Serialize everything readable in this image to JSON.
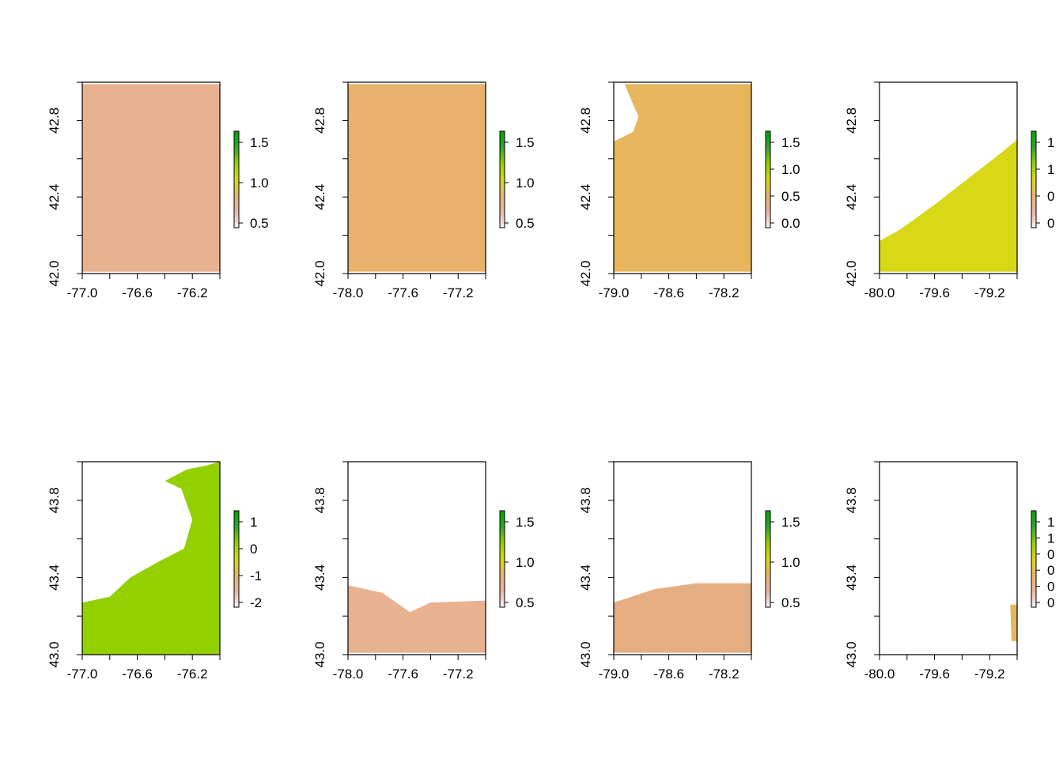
{
  "colors": {
    "background": "#ffffff",
    "frame": "#000000",
    "ramp": [
      "#f2f2f2",
      "#eab4a4",
      "#e8b36c",
      "#d8d817",
      "#93d000",
      "#31a531",
      "#00a600"
    ]
  },
  "panels": [
    {
      "row": 1,
      "col": 1,
      "x_ticks": [
        "-77.0",
        "-76.6",
        "-76.2"
      ],
      "y_ticks": [
        "42.0",
        "42.4",
        "42.8"
      ],
      "legend_ticks": [
        "0.5",
        "1.0",
        "1.5"
      ],
      "coverage": "full",
      "base_color": "#e8b190"
    },
    {
      "row": 1,
      "col": 2,
      "x_ticks": [
        "-78.0",
        "-77.6",
        "-77.2"
      ],
      "y_ticks": [
        "42.0",
        "42.4",
        "42.8"
      ],
      "legend_ticks": [
        "0.5",
        "1.0",
        "1.5"
      ],
      "coverage": "full",
      "base_color": "#e8b16c"
    },
    {
      "row": 1,
      "col": 3,
      "x_ticks": [
        "-79.0",
        "-78.6",
        "-78.2"
      ],
      "y_ticks": [
        "42.0",
        "42.4",
        "42.8"
      ],
      "legend_ticks": [
        "0.0",
        "0.5",
        "1.0",
        "1.5"
      ],
      "coverage": "full_minus_lake_corner",
      "base_color": "#e6b55c"
    },
    {
      "row": 1,
      "col": 4,
      "x_ticks": [
        "-80.0",
        "-79.6",
        "-79.2"
      ],
      "y_ticks": [
        "42.0",
        "42.4",
        "42.8"
      ],
      "legend_ticks": [
        "0",
        "0",
        "1",
        "1"
      ],
      "coverage": "lower_right_wedge",
      "base_color": "#d8d817"
    },
    {
      "row": 2,
      "col": 1,
      "x_ticks": [
        "-77.0",
        "-76.6",
        "-76.2"
      ],
      "y_ticks": [
        "43.0",
        "43.4",
        "43.8"
      ],
      "legend_ticks": [
        "-2",
        "-1",
        "0",
        "1"
      ],
      "coverage": "lower_right_land",
      "base_color": "#93d000"
    },
    {
      "row": 2,
      "col": 2,
      "x_ticks": [
        "-78.0",
        "-77.6",
        "-77.2"
      ],
      "y_ticks": [
        "43.0",
        "43.4",
        "43.8"
      ],
      "legend_ticks": [
        "0.5",
        "1.0",
        "1.5"
      ],
      "coverage": "bottom_strip_dip",
      "base_color": "#e8b190"
    },
    {
      "row": 2,
      "col": 3,
      "x_ticks": [
        "-79.0",
        "-78.6",
        "-78.2"
      ],
      "y_ticks": [
        "43.0",
        "43.4",
        "43.8"
      ],
      "legend_ticks": [
        "0.5",
        "1.0",
        "1.5"
      ],
      "coverage": "bottom_strip_arc",
      "base_color": "#e4ad82"
    },
    {
      "row": 2,
      "col": 4,
      "x_ticks": [
        "-80.0",
        "-79.6",
        "-79.2"
      ],
      "y_ticks": [
        "43.0",
        "43.4",
        "43.8"
      ],
      "legend_ticks": [
        "0",
        "0",
        "0",
        "0",
        "1",
        "1"
      ],
      "coverage": "tiny_right_sliver",
      "base_color": "#e6b55c"
    }
  ]
}
